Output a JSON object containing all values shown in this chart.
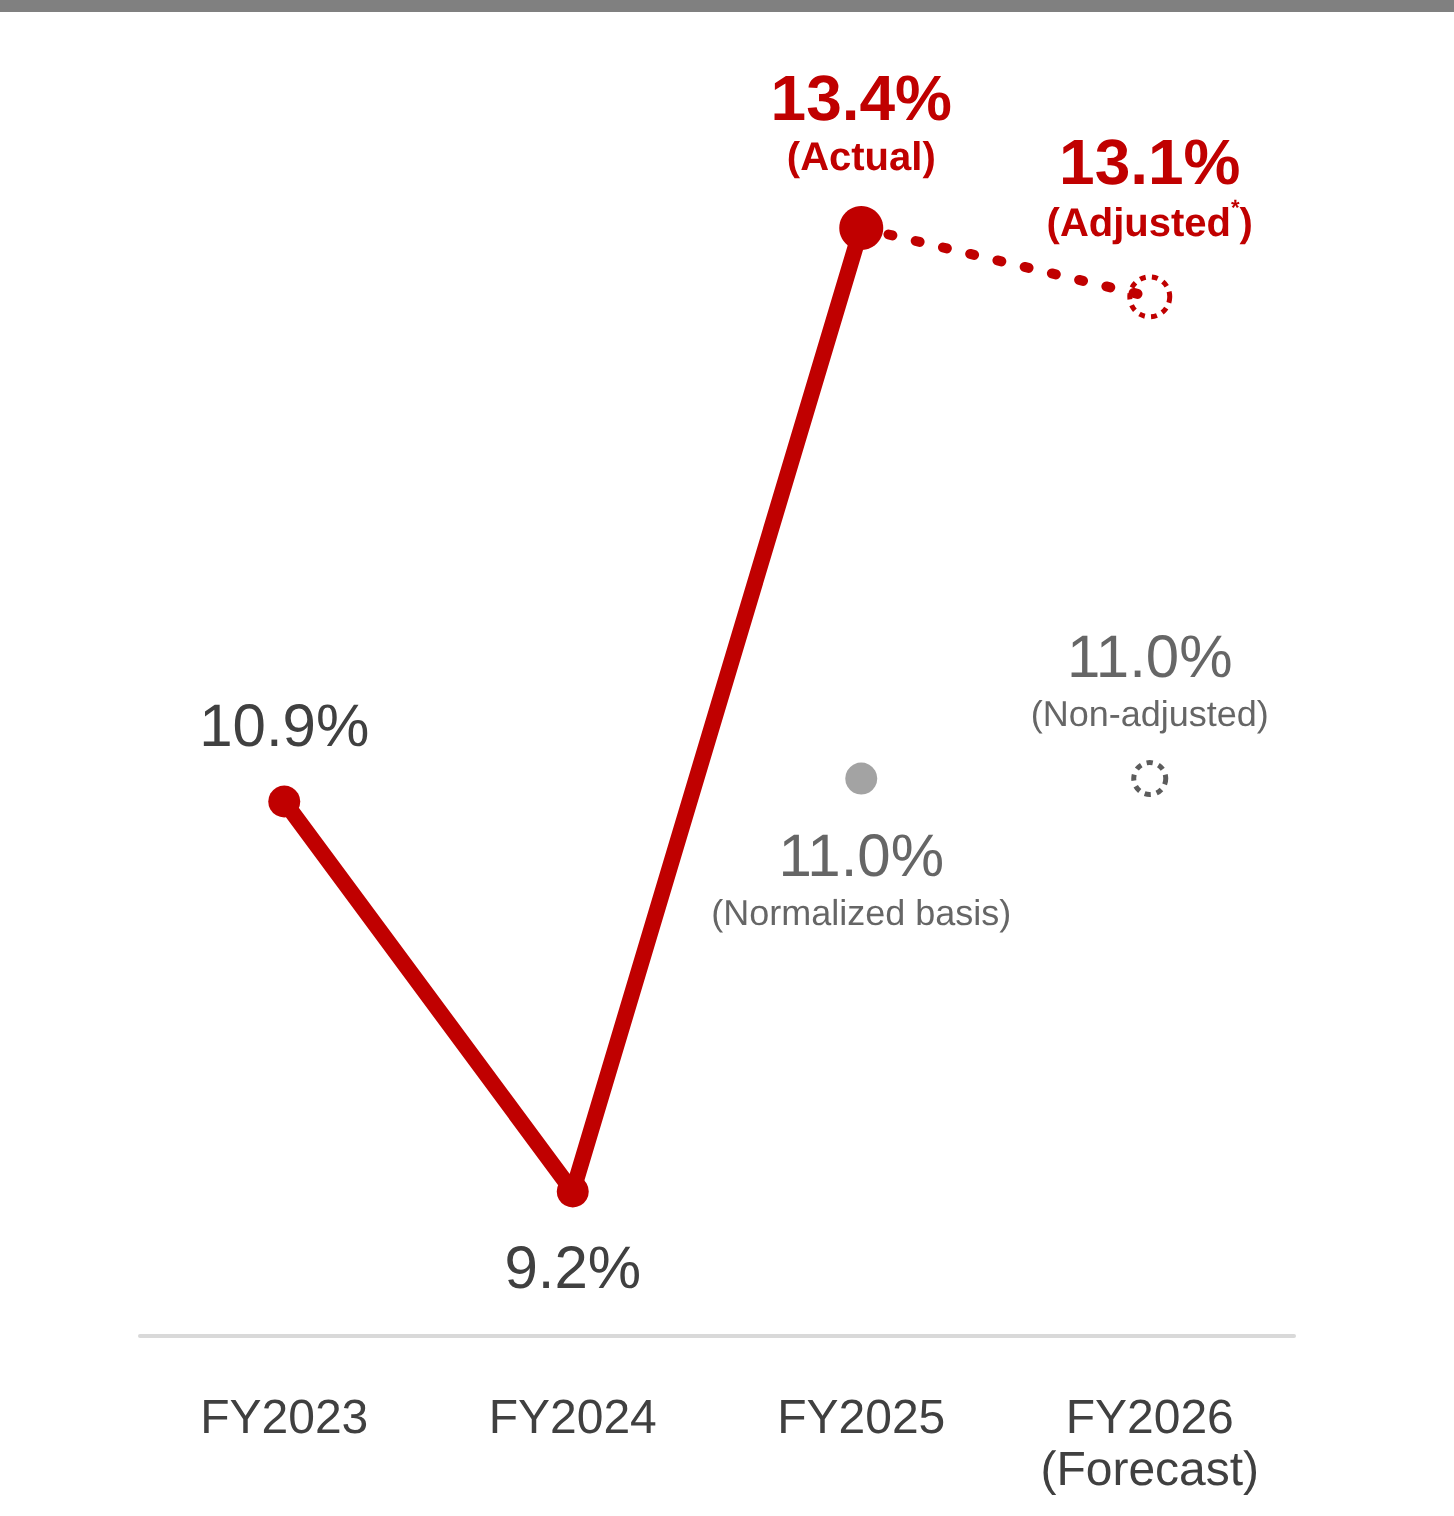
{
  "chart_data": {
    "type": "line",
    "categories": [
      "FY2023",
      "FY2024",
      "FY2025",
      "FY2026\n(Forecast)"
    ],
    "series": [
      {
        "color": "#c00000",
        "values": [
          10.9,
          9.2,
          13.4,
          null
        ],
        "line_style": "solid",
        "marker": "circle",
        "value_labels": [
          "10.9%",
          "9.2%",
          "13.4%\n(Actual)",
          null
        ]
      },
      {
        "color": "#c00000",
        "values": [
          null,
          null,
          13.4,
          13.1
        ],
        "line_style": "dotted",
        "marker": "circle",
        "value_labels": [
          null,
          null,
          null,
          "13.1%\n(Adjusted$^{*}$)"
        ]
      },
      {
        "type": "scatter",
        "color": "#8c8c8c",
        "values": [
          null,
          null,
          11.0,
          null
        ],
        "marker": "circle",
        "value_labels": [
          null,
          null,
          "11.0%\n(Normalized basis)",
          null
        ]
      },
      {
        "type": "scatter",
        "color": "#333333",
        "values": [
          null,
          null,
          null,
          11.0
        ],
        "marker": "circle",
        "line_style": "dotted",
        "value_labels": [
          null,
          null,
          null,
          "11.0%\n(Non-adjusted)"
        ]
      }
    ],
    "grid": false,
    "tick_labels": "x"
  }
}
